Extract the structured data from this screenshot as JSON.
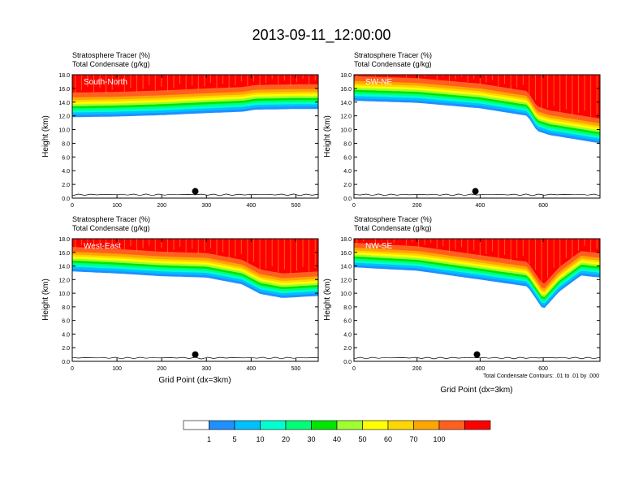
{
  "title": "2013-09-11_12:00:00",
  "panel_header": {
    "line1": "Stratosphere Tracer   (%)",
    "line2": "Total Condensate   (g/kg)"
  },
  "ylabel": "Height (km)",
  "xlabel": "Grid Point (dx=3km)",
  "contour_note": "Total Condensate Contours: .01 to .01 by .000",
  "colors": {
    "levels": [
      "#ffffff",
      "#1e90ff",
      "#00c0ff",
      "#00ffd0",
      "#00ff78",
      "#00e600",
      "#a0ff30",
      "#ffff00",
      "#ffd700",
      "#ffa500",
      "#ff6020",
      "#ff0000"
    ],
    "contour": "#000000"
  },
  "chart_data": [
    {
      "type": "heatmap",
      "panel": "South-North",
      "label": "South-North",
      "xlim": [
        0,
        550
      ],
      "ylim": [
        0,
        18
      ],
      "xticks": [
        0,
        100,
        200,
        300,
        400,
        500
      ],
      "yticks": [
        0.0,
        2.0,
        4.0,
        6.0,
        8.0,
        10.0,
        12.0,
        14.0,
        16.0,
        18.0
      ],
      "tracer_base_km": [
        [
          0,
          11.8
        ],
        [
          100,
          11.9
        ],
        [
          200,
          12.1
        ],
        [
          300,
          12.4
        ],
        [
          380,
          12.6
        ],
        [
          410,
          12.9
        ],
        [
          500,
          13.0
        ],
        [
          550,
          13.0
        ]
      ],
      "marker": {
        "x": 275,
        "y": 1.0
      }
    },
    {
      "type": "heatmap",
      "panel": "SW-NE",
      "label": "SW-NE",
      "xlim": [
        0,
        780
      ],
      "ylim": [
        0,
        18
      ],
      "xticks": [
        0,
        200,
        400,
        600
      ],
      "yticks": [
        0.0,
        2.0,
        4.0,
        6.0,
        8.0,
        10.0,
        12.0,
        14.0,
        16.0,
        18.0
      ],
      "tracer_base_km": [
        [
          0,
          14.2
        ],
        [
          200,
          13.9
        ],
        [
          400,
          13.1
        ],
        [
          550,
          12.0
        ],
        [
          580,
          9.8
        ],
        [
          620,
          9.2
        ],
        [
          700,
          8.6
        ],
        [
          780,
          8.0
        ]
      ],
      "marker": {
        "x": 385,
        "y": 1.0
      }
    },
    {
      "type": "heatmap",
      "panel": "West-East",
      "label": "West-East",
      "xlim": [
        0,
        550
      ],
      "ylim": [
        0,
        18
      ],
      "xticks": [
        0,
        100,
        200,
        300,
        400,
        500
      ],
      "yticks": [
        0.0,
        2.0,
        4.0,
        6.0,
        8.0,
        10.0,
        12.0,
        14.0,
        16.0,
        18.0
      ],
      "tracer_base_km": [
        [
          0,
          13.2
        ],
        [
          100,
          12.9
        ],
        [
          200,
          12.5
        ],
        [
          300,
          12.3
        ],
        [
          380,
          11.3
        ],
        [
          420,
          9.9
        ],
        [
          470,
          9.3
        ],
        [
          550,
          9.6
        ]
      ],
      "marker": {
        "x": 275,
        "y": 1.0
      }
    },
    {
      "type": "heatmap",
      "panel": "NW-SE",
      "label": "NW-SE",
      "xlim": [
        0,
        780
      ],
      "ylim": [
        0,
        18
      ],
      "xticks": [
        0,
        200,
        400,
        600
      ],
      "yticks": [
        0.0,
        2.0,
        4.0,
        6.0,
        8.0,
        10.0,
        12.0,
        14.0,
        16.0,
        18.0
      ],
      "tracer_base_km": [
        [
          0,
          13.8
        ],
        [
          200,
          13.3
        ],
        [
          400,
          12.0
        ],
        [
          550,
          11.0
        ],
        [
          600,
          7.6
        ],
        [
          650,
          10.2
        ],
        [
          720,
          12.6
        ],
        [
          780,
          12.3
        ]
      ],
      "marker": {
        "x": 390,
        "y": 1.0
      }
    }
  ],
  "colorbar": {
    "labels": [
      "1",
      "5",
      "10",
      "20",
      "30",
      "40",
      "50",
      "60",
      "70",
      "100"
    ]
  }
}
